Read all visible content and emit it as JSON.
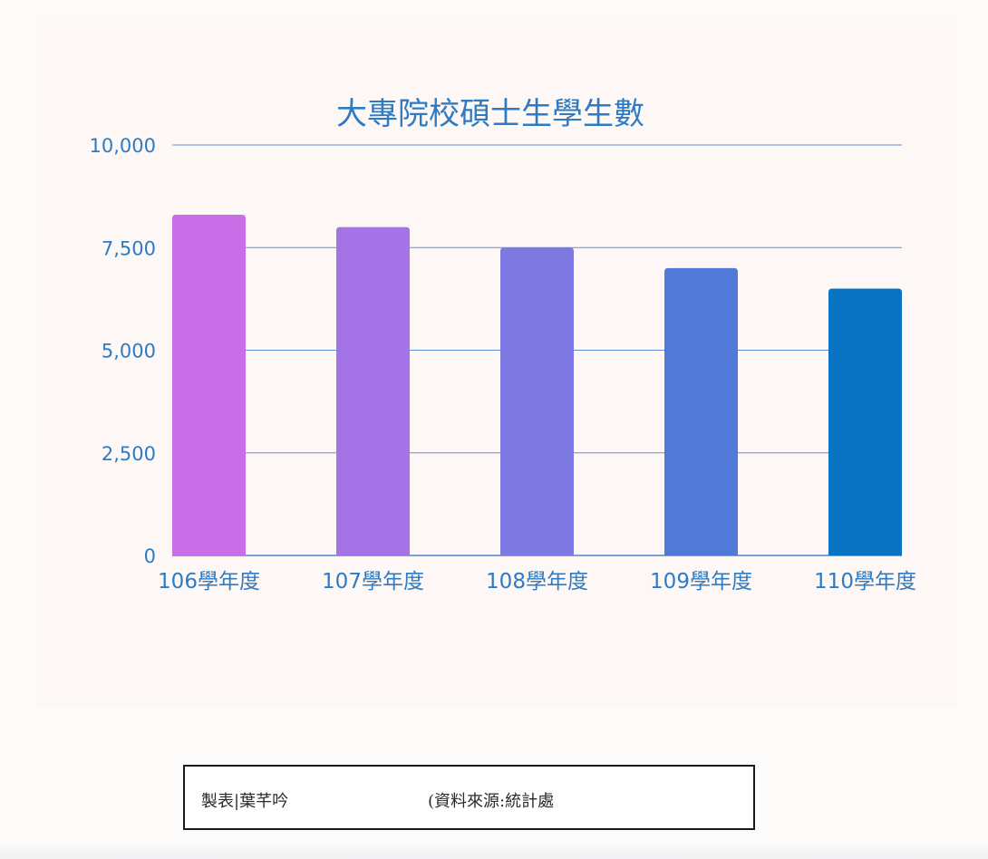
{
  "chart_data": {
    "type": "bar",
    "title": "大專院校碩士生學生數",
    "categories": [
      "106學年度",
      "107學年度",
      "108學年度",
      "109學年度",
      "110學年度"
    ],
    "values": [
      8300,
      8000,
      7500,
      7000,
      6500
    ],
    "ylim": [
      0,
      10000
    ],
    "yticks": [
      "0",
      "2,500",
      "5,000",
      "7,500",
      "10,000"
    ],
    "bar_colors": [
      "#c86ee6",
      "#a474e6",
      "#7d78e2",
      "#5079d8",
      "#0a74c4"
    ],
    "grid": true,
    "legend": "none"
  },
  "credit": {
    "author": "製表|葉芊吟",
    "source": "(資料來源:統計處"
  }
}
